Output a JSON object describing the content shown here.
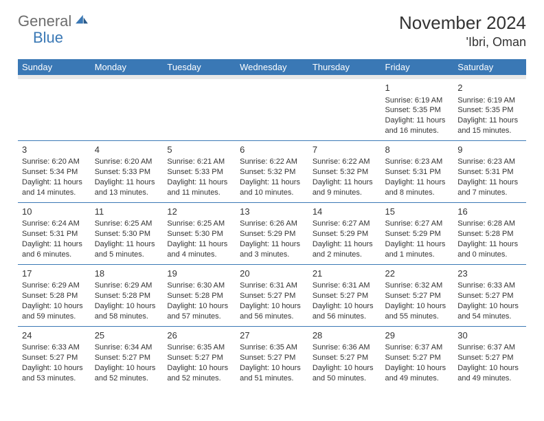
{
  "logo": {
    "part1": "General",
    "part2": "Blue"
  },
  "title": "November 2024",
  "location": "'Ibri, Oman",
  "colors": {
    "header_bg": "#3a78b5",
    "header_text": "#ffffff",
    "border": "#3a78b5",
    "spacer": "#e8e8e8",
    "logo_gray": "#6d6d6d",
    "logo_blue": "#3a78b5",
    "text": "#333333",
    "background": "#ffffff"
  },
  "weekdays": [
    "Sunday",
    "Monday",
    "Tuesday",
    "Wednesday",
    "Thursday",
    "Friday",
    "Saturday"
  ],
  "weeks": [
    [
      null,
      null,
      null,
      null,
      null,
      {
        "n": "1",
        "sunrise": "6:19 AM",
        "sunset": "5:35 PM",
        "day_h": "11",
        "day_m": "16"
      },
      {
        "n": "2",
        "sunrise": "6:19 AM",
        "sunset": "5:35 PM",
        "day_h": "11",
        "day_m": "15"
      }
    ],
    [
      {
        "n": "3",
        "sunrise": "6:20 AM",
        "sunset": "5:34 PM",
        "day_h": "11",
        "day_m": "14"
      },
      {
        "n": "4",
        "sunrise": "6:20 AM",
        "sunset": "5:33 PM",
        "day_h": "11",
        "day_m": "13"
      },
      {
        "n": "5",
        "sunrise": "6:21 AM",
        "sunset": "5:33 PM",
        "day_h": "11",
        "day_m": "11"
      },
      {
        "n": "6",
        "sunrise": "6:22 AM",
        "sunset": "5:32 PM",
        "day_h": "11",
        "day_m": "10"
      },
      {
        "n": "7",
        "sunrise": "6:22 AM",
        "sunset": "5:32 PM",
        "day_h": "11",
        "day_m": "9"
      },
      {
        "n": "8",
        "sunrise": "6:23 AM",
        "sunset": "5:31 PM",
        "day_h": "11",
        "day_m": "8"
      },
      {
        "n": "9",
        "sunrise": "6:23 AM",
        "sunset": "5:31 PM",
        "day_h": "11",
        "day_m": "7"
      }
    ],
    [
      {
        "n": "10",
        "sunrise": "6:24 AM",
        "sunset": "5:31 PM",
        "day_h": "11",
        "day_m": "6"
      },
      {
        "n": "11",
        "sunrise": "6:25 AM",
        "sunset": "5:30 PM",
        "day_h": "11",
        "day_m": "5"
      },
      {
        "n": "12",
        "sunrise": "6:25 AM",
        "sunset": "5:30 PM",
        "day_h": "11",
        "day_m": "4"
      },
      {
        "n": "13",
        "sunrise": "6:26 AM",
        "sunset": "5:29 PM",
        "day_h": "11",
        "day_m": "3"
      },
      {
        "n": "14",
        "sunrise": "6:27 AM",
        "sunset": "5:29 PM",
        "day_h": "11",
        "day_m": "2"
      },
      {
        "n": "15",
        "sunrise": "6:27 AM",
        "sunset": "5:29 PM",
        "day_h": "11",
        "day_m": "1"
      },
      {
        "n": "16",
        "sunrise": "6:28 AM",
        "sunset": "5:28 PM",
        "day_h": "11",
        "day_m": "0"
      }
    ],
    [
      {
        "n": "17",
        "sunrise": "6:29 AM",
        "sunset": "5:28 PM",
        "day_h": "10",
        "day_m": "59"
      },
      {
        "n": "18",
        "sunrise": "6:29 AM",
        "sunset": "5:28 PM",
        "day_h": "10",
        "day_m": "58"
      },
      {
        "n": "19",
        "sunrise": "6:30 AM",
        "sunset": "5:28 PM",
        "day_h": "10",
        "day_m": "57"
      },
      {
        "n": "20",
        "sunrise": "6:31 AM",
        "sunset": "5:27 PM",
        "day_h": "10",
        "day_m": "56"
      },
      {
        "n": "21",
        "sunrise": "6:31 AM",
        "sunset": "5:27 PM",
        "day_h": "10",
        "day_m": "56"
      },
      {
        "n": "22",
        "sunrise": "6:32 AM",
        "sunset": "5:27 PM",
        "day_h": "10",
        "day_m": "55"
      },
      {
        "n": "23",
        "sunrise": "6:33 AM",
        "sunset": "5:27 PM",
        "day_h": "10",
        "day_m": "54"
      }
    ],
    [
      {
        "n": "24",
        "sunrise": "6:33 AM",
        "sunset": "5:27 PM",
        "day_h": "10",
        "day_m": "53"
      },
      {
        "n": "25",
        "sunrise": "6:34 AM",
        "sunset": "5:27 PM",
        "day_h": "10",
        "day_m": "52"
      },
      {
        "n": "26",
        "sunrise": "6:35 AM",
        "sunset": "5:27 PM",
        "day_h": "10",
        "day_m": "52"
      },
      {
        "n": "27",
        "sunrise": "6:35 AM",
        "sunset": "5:27 PM",
        "day_h": "10",
        "day_m": "51"
      },
      {
        "n": "28",
        "sunrise": "6:36 AM",
        "sunset": "5:27 PM",
        "day_h": "10",
        "day_m": "50"
      },
      {
        "n": "29",
        "sunrise": "6:37 AM",
        "sunset": "5:27 PM",
        "day_h": "10",
        "day_m": "49"
      },
      {
        "n": "30",
        "sunrise": "6:37 AM",
        "sunset": "5:27 PM",
        "day_h": "10",
        "day_m": "49"
      }
    ]
  ]
}
